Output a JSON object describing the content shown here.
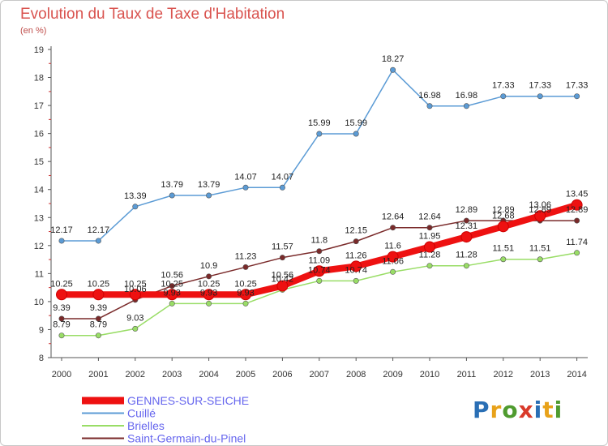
{
  "title": "Evolution du Taux de Taxe d'Habitation",
  "subtitle": "(en %)",
  "logo": {
    "text": "Proxiti",
    "letter_colors": [
      "#2a6fb5",
      "#e8a21a",
      "#4f9b2f",
      "#d93a2a",
      "#2a6fb5",
      "#e8a21a",
      "#4f9b2f"
    ]
  },
  "chart_data": {
    "type": "line",
    "title": "Evolution du Taux de Taxe d'Habitation",
    "ylabel": "(en %)",
    "xlabel": "",
    "ylim": [
      8,
      19
    ],
    "yticks": [
      8,
      9,
      10,
      11,
      12,
      13,
      14,
      15,
      16,
      17,
      18,
      19
    ],
    "x": [
      2000,
      2001,
      2002,
      2003,
      2004,
      2005,
      2006,
      2007,
      2008,
      2009,
      2010,
      2011,
      2012,
      2013,
      2014
    ],
    "grid": false,
    "legend_position": "bottom",
    "series": [
      {
        "name": "GENNES-SUR-SEICHE",
        "color": "#ee1111",
        "legend_text_color": "#6666ee",
        "thick": true,
        "values": [
          10.25,
          10.25,
          10.25,
          10.25,
          10.25,
          10.25,
          10.56,
          11.09,
          11.26,
          11.6,
          11.95,
          12.31,
          12.68,
          13.06,
          13.45
        ]
      },
      {
        "name": "Cuillé",
        "color": "#5b9bd5",
        "legend_text_color": "#6666ee",
        "thick": false,
        "values": [
          12.17,
          12.17,
          13.39,
          13.79,
          13.79,
          14.07,
          14.07,
          15.99,
          15.99,
          18.27,
          16.98,
          16.98,
          17.33,
          17.33,
          17.33
        ]
      },
      {
        "name": "Brielles",
        "color": "#99dd66",
        "legend_text_color": "#6666ee",
        "thick": false,
        "values": [
          8.79,
          8.79,
          9.03,
          9.93,
          9.93,
          9.93,
          10.42,
          10.74,
          10.74,
          11.06,
          11.28,
          11.28,
          11.51,
          11.51,
          11.74
        ]
      },
      {
        "name": "Saint-Germain-du-Pinel",
        "color": "#7a2a2a",
        "legend_text_color": "#6666ee",
        "thick": false,
        "values": [
          9.39,
          9.39,
          10.06,
          10.56,
          10.9,
          11.23,
          11.57,
          11.8,
          12.15,
          12.64,
          12.64,
          12.89,
          12.89,
          12.89,
          12.89
        ]
      }
    ],
    "data_labels": [
      [
        "10.25",
        "10.25",
        "10.25",
        "10.25",
        "10.25",
        "10.25",
        "10.56",
        "11.09",
        "11.26",
        "11.6",
        "11.95",
        "12.31",
        "12.68",
        "13.06",
        "13.45"
      ],
      [
        "12.17",
        "12.17",
        "13.39",
        "13.79",
        "13.79",
        "14.07",
        "14.07",
        "15.99",
        "15.99",
        "18.27",
        "16.98",
        "16.98",
        "17.33",
        "17.33",
        "17.33"
      ],
      [
        "8.79",
        "8.79",
        "9.03",
        "9.93",
        "9.93",
        "9.93",
        "10.42",
        "10.74",
        "10.74",
        "11.06",
        "11.28",
        "11.28",
        "11.51",
        "11.51",
        "11.74"
      ],
      [
        "9.39",
        "9.39",
        "10.06",
        "10.56",
        "10.9",
        "11.23",
        "11.57",
        "11.8",
        "12.15",
        "12.64",
        "12.64",
        "12.89",
        "12.89",
        "12.89",
        "12.89"
      ]
    ]
  }
}
